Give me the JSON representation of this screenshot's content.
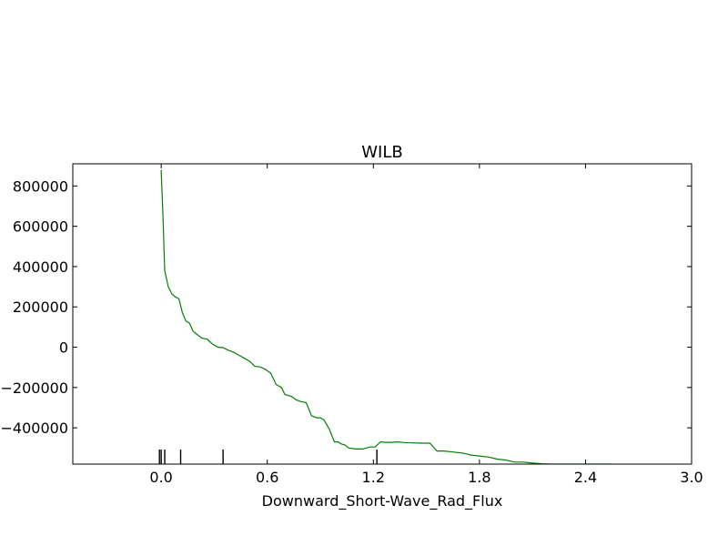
{
  "chart_data": {
    "type": "line",
    "title": "WILB",
    "xlabel": "Downward_Short-Wave_Rad_Flux",
    "ylabel": "",
    "xlim": [
      -0.5,
      3.0
    ],
    "ylim": [
      -580000,
      910000
    ],
    "xticks": [
      0.0,
      0.6,
      1.2,
      1.8,
      2.4,
      3.0
    ],
    "xtick_labels": [
      "0.0",
      "0.6",
      "1.2",
      "1.8",
      "2.4",
      "3.0"
    ],
    "yticks": [
      800000,
      600000,
      400000,
      200000,
      0,
      -200000,
      -400000
    ],
    "ytick_labels": [
      "800000",
      "600000",
      "400000",
      "200000",
      "0",
      "−200000",
      "−400000"
    ],
    "grid": false,
    "series": [
      {
        "color": "#008000",
        "x": [
          0.0,
          0.01,
          0.02,
          0.04,
          0.06,
          0.08,
          0.1,
          0.12,
          0.14,
          0.16,
          0.18,
          0.2,
          0.23,
          0.26,
          0.29,
          0.32,
          0.35,
          0.38,
          0.41,
          0.44,
          0.47,
          0.5,
          0.53,
          0.56,
          0.59,
          0.62,
          0.65,
          0.68,
          0.7,
          0.72,
          0.74,
          0.76,
          0.79,
          0.82,
          0.85,
          0.88,
          0.9,
          0.92,
          0.95,
          0.98,
          1.0,
          1.02,
          1.04,
          1.06,
          1.1,
          1.14,
          1.18,
          1.21,
          1.24,
          1.27,
          1.3,
          1.34,
          1.37,
          1.42,
          1.47,
          1.5,
          1.52,
          1.56,
          1.6,
          1.65,
          1.7,
          1.73,
          1.75,
          1.8,
          1.85,
          1.9,
          1.95,
          2.0,
          2.05,
          2.1,
          2.15,
          2.2,
          2.25,
          2.3,
          2.35,
          2.4,
          2.45,
          2.5,
          2.55
        ],
        "values": [
          880000,
          650000,
          380000,
          300000,
          265000,
          250000,
          240000,
          170000,
          130000,
          120000,
          80000,
          65000,
          45000,
          40000,
          15000,
          0,
          -2000,
          -15000,
          -25000,
          -40000,
          -55000,
          -70000,
          -95000,
          -98000,
          -110000,
          -130000,
          -185000,
          -200000,
          -235000,
          -240000,
          -245000,
          -260000,
          -270000,
          -275000,
          -340000,
          -350000,
          -350000,
          -360000,
          -405000,
          -470000,
          -470000,
          -480000,
          -485000,
          -500000,
          -505000,
          -505000,
          -495000,
          -495000,
          -470000,
          -472000,
          -472000,
          -470000,
          -473000,
          -475000,
          -476000,
          -476000,
          -476000,
          -515000,
          -515000,
          -520000,
          -525000,
          -530000,
          -535000,
          -540000,
          -545000,
          -555000,
          -560000,
          -570000,
          -570000,
          -575000,
          -578000,
          -580000,
          -580000,
          -580000,
          -580000,
          -580000,
          -580000,
          -580000,
          -580000
        ]
      }
    ],
    "rug": [
      -0.01,
      0.0,
      0.02,
      0.11,
      0.35,
      1.22
    ]
  }
}
